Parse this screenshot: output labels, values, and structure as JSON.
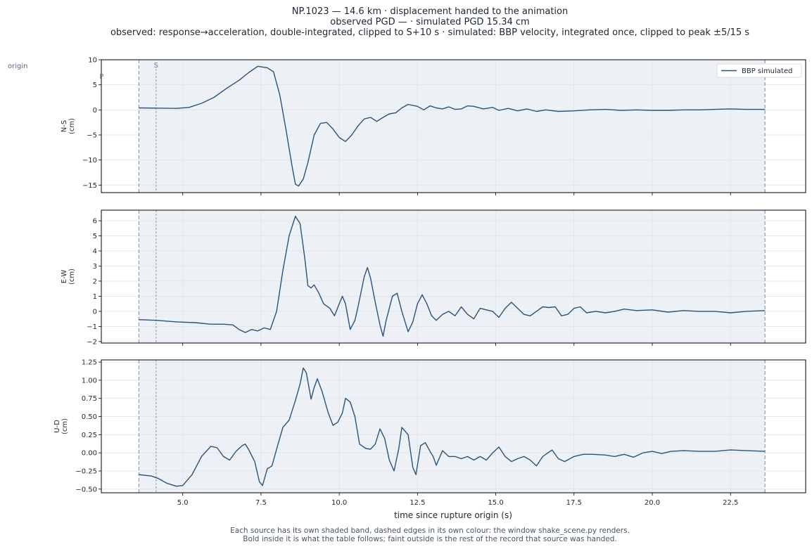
{
  "title": {
    "line1": "NP.1023  —  14.6 km   ·   displacement handed to the animation",
    "line2": "observed PGD —   ·   simulated PGD 15.34 cm",
    "line3": "observed: response→acceleration, double-integrated, clipped to S+10 s   ·   simulated: BBP velocity, integrated once, clipped to peak ±5/15 s"
  },
  "side_label": "origin",
  "markers": {
    "p": "P",
    "s": "S"
  },
  "caption": {
    "line1": "Each source has its own shaded band, dashed edges in its own colour: the window shake_scene.py renders.",
    "line2": "Bold inside it is what the table follows;   faint outside is the rest of the record that source was handed."
  },
  "colors": {
    "series": "#2b5278",
    "band": "#edf1f5",
    "dashed": "#7d94b0",
    "grid": "#dfe3e8"
  },
  "chart_data": {
    "type": "line",
    "xlabel": "time since rupture origin (s)",
    "xlim": [
      2.4,
      24.9
    ],
    "xticks": [
      5.0,
      7.5,
      10.0,
      12.5,
      15.0,
      17.5,
      20.0,
      22.5
    ],
    "xtick_labels": [
      "5.0",
      "7.5",
      "10.0",
      "12.5",
      "15.0",
      "17.5",
      "20.0",
      "22.5"
    ],
    "window": [
      3.6,
      23.6
    ],
    "p_arrival": 3.6,
    "s_arrival": 4.15,
    "legend": {
      "label": "BBP simulated",
      "position": "top-right"
    },
    "panels": [
      {
        "name": "N-S",
        "ylabel": [
          "N-S",
          "(cm)"
        ],
        "ylim": [
          -16.5,
          10
        ],
        "yticks": [
          -15,
          -10,
          -5,
          0,
          5,
          10
        ],
        "ytick_labels": [
          "−15",
          "−10",
          "−5",
          "0",
          "5",
          "10"
        ],
        "points": [
          [
            3.6,
            0.4
          ],
          [
            4.2,
            0.35
          ],
          [
            4.8,
            0.3
          ],
          [
            5.2,
            0.5
          ],
          [
            5.6,
            1.3
          ],
          [
            6.0,
            2.5
          ],
          [
            6.4,
            4.3
          ],
          [
            6.8,
            5.9
          ],
          [
            7.1,
            7.4
          ],
          [
            7.4,
            8.7
          ],
          [
            7.7,
            8.4
          ],
          [
            7.9,
            7.6
          ],
          [
            8.1,
            3.0
          ],
          [
            8.3,
            -4.0
          ],
          [
            8.5,
            -11.5
          ],
          [
            8.6,
            -14.8
          ],
          [
            8.7,
            -15.2
          ],
          [
            8.85,
            -13.8
          ],
          [
            9.0,
            -10.5
          ],
          [
            9.2,
            -5.0
          ],
          [
            9.4,
            -2.7
          ],
          [
            9.6,
            -2.5
          ],
          [
            9.8,
            -3.8
          ],
          [
            10.0,
            -5.5
          ],
          [
            10.2,
            -6.3
          ],
          [
            10.4,
            -5.0
          ],
          [
            10.6,
            -3.2
          ],
          [
            10.8,
            -1.8
          ],
          [
            11.0,
            -1.5
          ],
          [
            11.2,
            -2.3
          ],
          [
            11.4,
            -1.5
          ],
          [
            11.6,
            -0.8
          ],
          [
            11.8,
            -0.6
          ],
          [
            12.0,
            0.4
          ],
          [
            12.2,
            1.1
          ],
          [
            12.5,
            0.7
          ],
          [
            12.7,
            0.0
          ],
          [
            12.9,
            0.8
          ],
          [
            13.1,
            0.4
          ],
          [
            13.3,
            0.2
          ],
          [
            13.5,
            0.6
          ],
          [
            13.7,
            0.1
          ],
          [
            13.9,
            0.2
          ],
          [
            14.1,
            0.8
          ],
          [
            14.3,
            0.7
          ],
          [
            14.6,
            0.2
          ],
          [
            14.9,
            0.5
          ],
          [
            15.1,
            -0.1
          ],
          [
            15.4,
            0.3
          ],
          [
            15.7,
            -0.2
          ],
          [
            16.0,
            0.2
          ],
          [
            16.3,
            -0.3
          ],
          [
            16.6,
            0.0
          ],
          [
            17.0,
            -0.3
          ],
          [
            17.5,
            -0.2
          ],
          [
            18.0,
            0.0
          ],
          [
            18.5,
            0.1
          ],
          [
            19.0,
            -0.1
          ],
          [
            19.5,
            0.0
          ],
          [
            20.0,
            -0.1
          ],
          [
            20.5,
            -0.1
          ],
          [
            21.0,
            0.0
          ],
          [
            21.5,
            0.0
          ],
          [
            22.0,
            0.1
          ],
          [
            22.5,
            0.2
          ],
          [
            23.0,
            0.1
          ],
          [
            23.6,
            0.1
          ]
        ]
      },
      {
        "name": "E-W",
        "ylabel": [
          "E-W",
          "(cm)"
        ],
        "ylim": [
          -2.1,
          6.7
        ],
        "yticks": [
          -2,
          -1,
          0,
          1,
          2,
          3,
          4,
          5,
          6
        ],
        "ytick_labels": [
          "−2",
          "−1",
          "0",
          "1",
          "2",
          "3",
          "4",
          "5",
          "6"
        ],
        "points": [
          [
            3.6,
            -0.55
          ],
          [
            4.2,
            -0.6
          ],
          [
            4.8,
            -0.7
          ],
          [
            5.4,
            -0.75
          ],
          [
            5.9,
            -0.85
          ],
          [
            6.3,
            -0.85
          ],
          [
            6.6,
            -0.9
          ],
          [
            6.8,
            -1.2
          ],
          [
            7.0,
            -1.4
          ],
          [
            7.2,
            -1.2
          ],
          [
            7.4,
            -1.3
          ],
          [
            7.6,
            -1.1
          ],
          [
            7.8,
            -1.2
          ],
          [
            8.0,
            0.0
          ],
          [
            8.2,
            2.7
          ],
          [
            8.4,
            5.0
          ],
          [
            8.6,
            6.3
          ],
          [
            8.75,
            5.8
          ],
          [
            8.9,
            3.5
          ],
          [
            9.0,
            1.7
          ],
          [
            9.1,
            1.55
          ],
          [
            9.2,
            1.75
          ],
          [
            9.35,
            1.2
          ],
          [
            9.5,
            0.5
          ],
          [
            9.7,
            0.2
          ],
          [
            9.85,
            -0.3
          ],
          [
            10.0,
            0.5
          ],
          [
            10.1,
            1.0
          ],
          [
            10.2,
            0.5
          ],
          [
            10.35,
            -1.2
          ],
          [
            10.5,
            -0.6
          ],
          [
            10.6,
            0.3
          ],
          [
            10.8,
            2.3
          ],
          [
            10.9,
            2.9
          ],
          [
            11.0,
            2.2
          ],
          [
            11.15,
            0.6
          ],
          [
            11.3,
            -0.9
          ],
          [
            11.4,
            -1.65
          ],
          [
            11.5,
            -0.6
          ],
          [
            11.7,
            1.0
          ],
          [
            11.85,
            1.2
          ],
          [
            12.0,
            0.0
          ],
          [
            12.2,
            -1.35
          ],
          [
            12.35,
            -0.7
          ],
          [
            12.5,
            0.5
          ],
          [
            12.65,
            1.1
          ],
          [
            12.8,
            0.5
          ],
          [
            12.95,
            -0.3
          ],
          [
            13.1,
            -0.6
          ],
          [
            13.3,
            -0.2
          ],
          [
            13.5,
            0.0
          ],
          [
            13.7,
            -0.3
          ],
          [
            13.9,
            0.3
          ],
          [
            14.1,
            -0.2
          ],
          [
            14.3,
            -0.5
          ],
          [
            14.5,
            0.2
          ],
          [
            14.7,
            0.1
          ],
          [
            14.9,
            0.0
          ],
          [
            15.1,
            -0.4
          ],
          [
            15.3,
            0.2
          ],
          [
            15.5,
            0.6
          ],
          [
            15.7,
            0.2
          ],
          [
            15.9,
            -0.2
          ],
          [
            16.1,
            -0.3
          ],
          [
            16.3,
            0.0
          ],
          [
            16.5,
            0.3
          ],
          [
            16.7,
            0.25
          ],
          [
            16.9,
            0.3
          ],
          [
            17.1,
            -0.3
          ],
          [
            17.3,
            -0.2
          ],
          [
            17.5,
            0.2
          ],
          [
            17.7,
            0.3
          ],
          [
            17.9,
            -0.1
          ],
          [
            18.2,
            0.0
          ],
          [
            18.5,
            -0.1
          ],
          [
            18.8,
            0.0
          ],
          [
            19.1,
            0.15
          ],
          [
            19.5,
            0.05
          ],
          [
            20.0,
            0.1
          ],
          [
            20.5,
            -0.05
          ],
          [
            21.0,
            0.05
          ],
          [
            21.5,
            0.0
          ],
          [
            22.0,
            0.0
          ],
          [
            22.5,
            -0.1
          ],
          [
            23.0,
            0.0
          ],
          [
            23.6,
            0.05
          ]
        ]
      },
      {
        "name": "U-D",
        "ylabel": [
          "U-D",
          "(cm)"
        ],
        "ylim": [
          -0.55,
          1.28
        ],
        "yticks": [
          -0.5,
          -0.25,
          0.0,
          0.25,
          0.5,
          0.75,
          1.0,
          1.25
        ],
        "ytick_labels": [
          "−0.50",
          "−0.25",
          "0.00",
          "0.25",
          "0.50",
          "0.75",
          "1.00",
          "1.25"
        ],
        "points": [
          [
            3.6,
            -0.3
          ],
          [
            4.0,
            -0.32
          ],
          [
            4.2,
            -0.35
          ],
          [
            4.5,
            -0.42
          ],
          [
            4.8,
            -0.46
          ],
          [
            5.0,
            -0.45
          ],
          [
            5.3,
            -0.3
          ],
          [
            5.6,
            -0.05
          ],
          [
            5.9,
            0.09
          ],
          [
            6.1,
            0.07
          ],
          [
            6.3,
            -0.05
          ],
          [
            6.5,
            -0.1
          ],
          [
            6.7,
            0.02
          ],
          [
            6.9,
            0.1
          ],
          [
            7.0,
            0.12
          ],
          [
            7.1,
            0.05
          ],
          [
            7.3,
            -0.12
          ],
          [
            7.45,
            -0.4
          ],
          [
            7.55,
            -0.45
          ],
          [
            7.7,
            -0.22
          ],
          [
            7.85,
            -0.18
          ],
          [
            8.0,
            0.05
          ],
          [
            8.2,
            0.35
          ],
          [
            8.4,
            0.45
          ],
          [
            8.6,
            0.72
          ],
          [
            8.75,
            0.95
          ],
          [
            8.85,
            1.17
          ],
          [
            8.95,
            1.1
          ],
          [
            9.1,
            0.74
          ],
          [
            9.2,
            0.9
          ],
          [
            9.3,
            1.02
          ],
          [
            9.45,
            0.85
          ],
          [
            9.65,
            0.55
          ],
          [
            9.8,
            0.38
          ],
          [
            9.95,
            0.42
          ],
          [
            10.1,
            0.55
          ],
          [
            10.2,
            0.75
          ],
          [
            10.35,
            0.7
          ],
          [
            10.5,
            0.5
          ],
          [
            10.65,
            0.12
          ],
          [
            10.85,
            0.06
          ],
          [
            11.0,
            0.05
          ],
          [
            11.15,
            0.12
          ],
          [
            11.3,
            0.33
          ],
          [
            11.45,
            0.2
          ],
          [
            11.6,
            -0.1
          ],
          [
            11.75,
            -0.25
          ],
          [
            11.9,
            0.05
          ],
          [
            12.0,
            0.35
          ],
          [
            12.2,
            0.25
          ],
          [
            12.35,
            -0.2
          ],
          [
            12.45,
            -0.3
          ],
          [
            12.6,
            0.1
          ],
          [
            12.75,
            0.14
          ],
          [
            12.9,
            0.02
          ],
          [
            13.0,
            -0.05
          ],
          [
            13.1,
            -0.17
          ],
          [
            13.3,
            0.03
          ],
          [
            13.5,
            -0.05
          ],
          [
            13.7,
            -0.05
          ],
          [
            13.9,
            -0.08
          ],
          [
            14.1,
            -0.05
          ],
          [
            14.3,
            -0.1
          ],
          [
            14.5,
            -0.05
          ],
          [
            14.7,
            -0.1
          ],
          [
            14.9,
            0.0
          ],
          [
            15.1,
            0.08
          ],
          [
            15.3,
            -0.05
          ],
          [
            15.5,
            -0.12
          ],
          [
            15.7,
            -0.08
          ],
          [
            15.9,
            -0.05
          ],
          [
            16.1,
            -0.1
          ],
          [
            16.3,
            -0.18
          ],
          [
            16.5,
            -0.05
          ],
          [
            16.8,
            0.04
          ],
          [
            17.0,
            -0.08
          ],
          [
            17.2,
            -0.12
          ],
          [
            17.5,
            -0.05
          ],
          [
            17.8,
            -0.02
          ],
          [
            18.1,
            -0.02
          ],
          [
            18.5,
            -0.03
          ],
          [
            18.8,
            -0.05
          ],
          [
            19.1,
            -0.02
          ],
          [
            19.4,
            -0.06
          ],
          [
            19.7,
            0.0
          ],
          [
            20.0,
            0.02
          ],
          [
            20.3,
            -0.01
          ],
          [
            20.6,
            0.02
          ],
          [
            21.0,
            0.03
          ],
          [
            21.5,
            0.02
          ],
          [
            22.0,
            0.02
          ],
          [
            22.5,
            0.04
          ],
          [
            23.0,
            0.03
          ],
          [
            23.6,
            0.02
          ]
        ]
      }
    ]
  }
}
